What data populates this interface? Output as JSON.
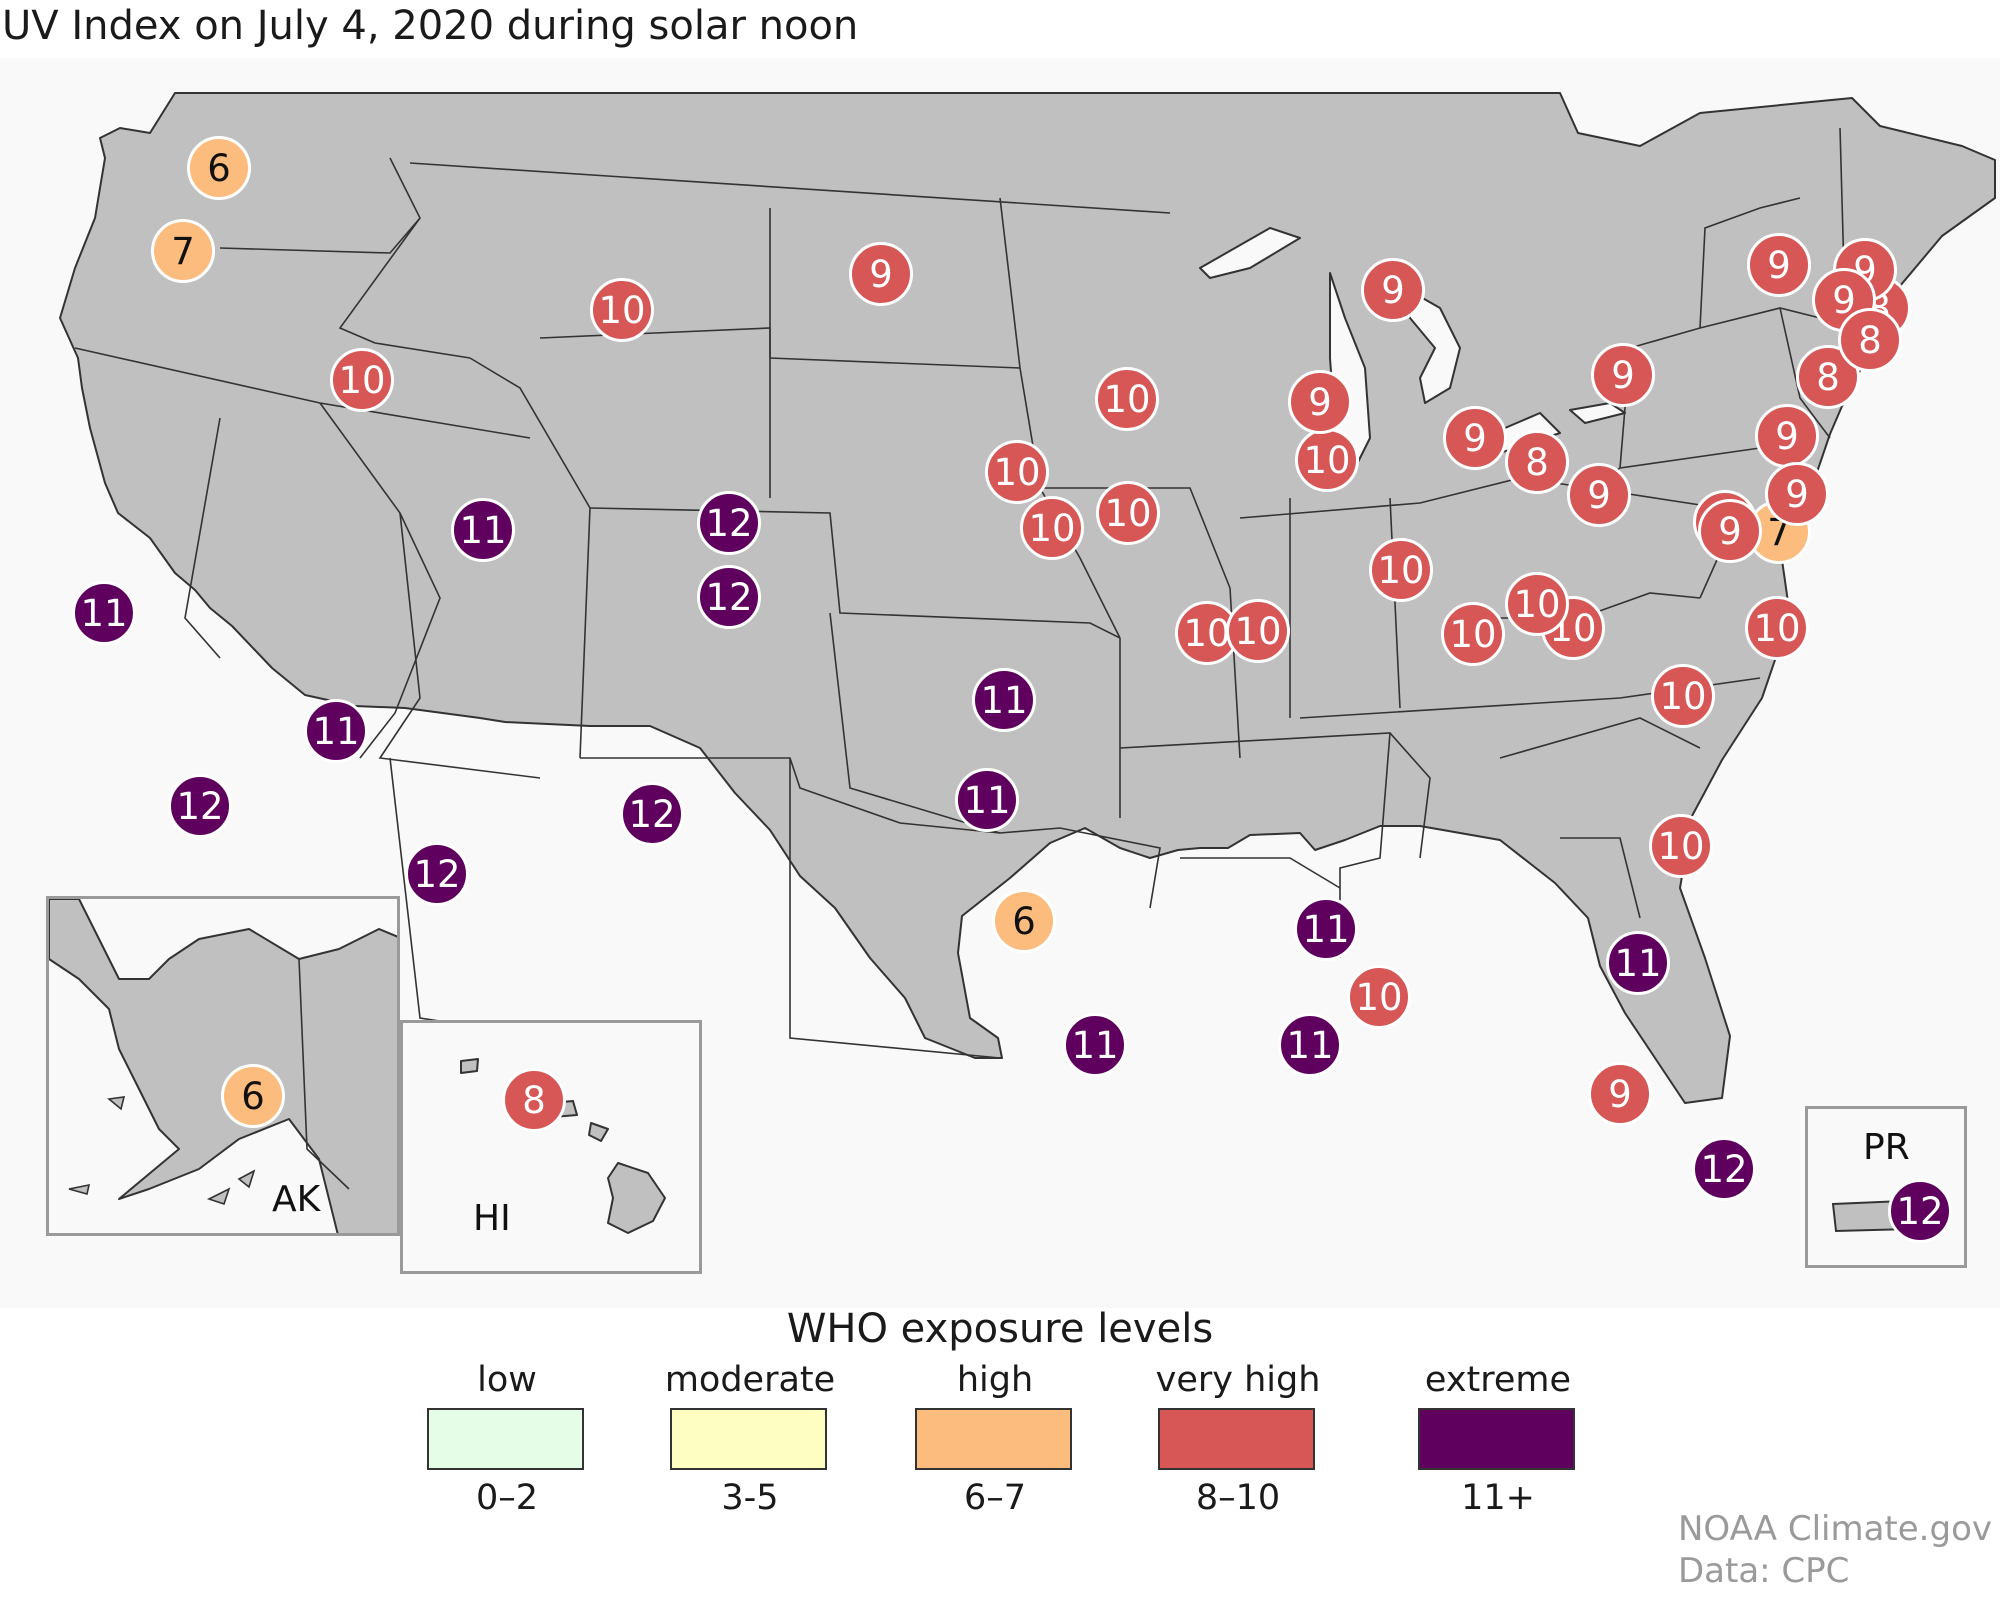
{
  "title": "UV Index on July 4, 2020 during solar noon",
  "colors": {
    "background": "#f9f9f9",
    "land": "#c0c0c0",
    "border": "#333333",
    "low": "#e5fde7",
    "moderate": "#fefec3",
    "high": "#fbbc7e",
    "very_high": "#d65756",
    "extreme": "#5f005f"
  },
  "insets": {
    "alaska": {
      "label": "AK"
    },
    "hawaii": {
      "label": "HI"
    },
    "puerto_rico": {
      "label": "PR"
    }
  },
  "legend": {
    "title": "WHO exposure levels",
    "items": [
      {
        "label": "low",
        "range": "0–2",
        "color": "#e5fde7"
      },
      {
        "label": "moderate",
        "range": "3-5",
        "color": "#fefec3"
      },
      {
        "label": "high",
        "range": "6–7",
        "color": "#fbbc7e"
      },
      {
        "label": "very high",
        "range": "8–10",
        "color": "#d65756"
      },
      {
        "label": "extreme",
        "range": "11+",
        "color": "#5f005f"
      }
    ]
  },
  "credit": {
    "line1": "NOAA Climate.gov",
    "line2": "Data: CPC"
  },
  "uv_readings": [
    {
      "value": 6
    },
    {
      "value": 7
    },
    {
      "value": 10
    },
    {
      "value": 10
    },
    {
      "value": 9
    },
    {
      "value": 11
    },
    {
      "value": 12
    },
    {
      "value": 12
    },
    {
      "value": 11
    },
    {
      "value": 11
    },
    {
      "value": 12
    },
    {
      "value": 12
    },
    {
      "value": 12
    },
    {
      "value": 11
    },
    {
      "value": 11
    },
    {
      "value": 6
    },
    {
      "value": 11
    },
    {
      "value": 10
    },
    {
      "value": 10
    },
    {
      "value": 10
    },
    {
      "value": 10
    },
    {
      "value": 10
    },
    {
      "value": 10
    },
    {
      "value": 11
    },
    {
      "value": 11
    },
    {
      "value": 10
    },
    {
      "value": 9
    },
    {
      "value": 10
    },
    {
      "value": 10
    },
    {
      "value": 10
    },
    {
      "value": 9
    },
    {
      "value": 8
    },
    {
      "value": 9
    },
    {
      "value": 10
    },
    {
      "value": 10
    },
    {
      "value": 11
    },
    {
      "value": 9
    },
    {
      "value": 12
    },
    {
      "value": 9
    },
    {
      "value": 9
    },
    {
      "value": 9
    },
    {
      "value": 8
    },
    {
      "value": 8
    },
    {
      "value": 9
    },
    {
      "value": 9
    },
    {
      "value": 8
    },
    {
      "value": 9
    },
    {
      "value": 7
    },
    {
      "value": 9
    },
    {
      "value": 9
    },
    {
      "value": 9
    },
    {
      "value": 10
    },
    {
      "value": 10
    },
    {
      "value": 10
    },
    {
      "value": 6
    },
    {
      "value": 8
    },
    {
      "value": 12
    }
  ]
}
